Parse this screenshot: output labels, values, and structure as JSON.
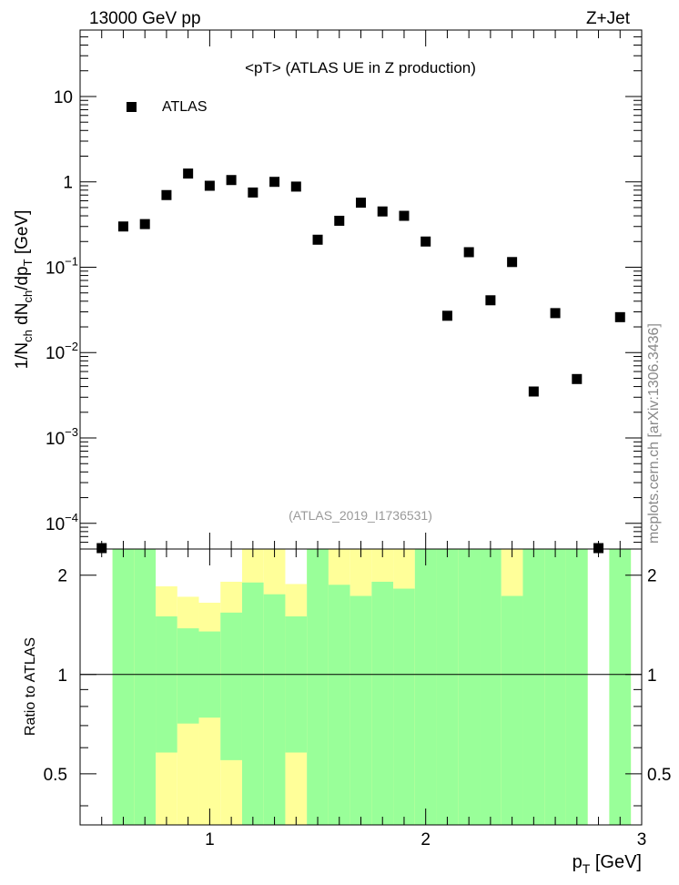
{
  "header": {
    "energy_label": "13000 GeV pp",
    "process_label": "Z+Jet",
    "side_label": "mcplots.cern.ch [arXiv:1306.3436]"
  },
  "chart_data": [
    {
      "type": "scatter",
      "title": "<pT> (ATLAS UE in Z production)",
      "analysis_label": "(ATLAS_2019_I1736531)",
      "ylabel": "1/N_ch dN_ch/dp_T [GeV]",
      "ylabel_parts": {
        "main": "1/N",
        "sub1": "ch",
        "mid": " dN",
        "sub2": "ch",
        "mid2": "/dp",
        "sub3": "T",
        "unit": " [GeV]"
      },
      "log_y": true,
      "xlim": [
        0.4,
        3.0
      ],
      "ylim": [
        5e-05,
        60
      ],
      "y_tick_labels": [
        {
          "value": 10,
          "label": "10"
        },
        {
          "value": 1,
          "label": "1"
        },
        {
          "value": 0.1,
          "base": "10",
          "exp": "−1"
        },
        {
          "value": 0.01,
          "base": "10",
          "exp": "−2"
        },
        {
          "value": 0.001,
          "base": "10",
          "exp": "−3"
        },
        {
          "value": 0.0001,
          "base": "10",
          "exp": "−4"
        }
      ],
      "legend": {
        "placement": "top-left",
        "entries": [
          {
            "label": "ATLAS",
            "marker": "square",
            "color": "#000000"
          }
        ]
      },
      "series": [
        {
          "name": "ATLAS",
          "x": [
            0.5,
            0.6,
            0.7,
            0.8,
            0.9,
            1.0,
            1.1,
            1.2,
            1.3,
            1.4,
            1.5,
            1.6,
            1.7,
            1.8,
            1.9,
            2.0,
            2.1,
            2.2,
            2.3,
            2.4,
            2.5,
            2.6,
            2.7,
            2.8,
            2.9
          ],
          "y": [
            5e-05,
            0.3,
            0.32,
            0.7,
            1.25,
            0.9,
            1.05,
            0.75,
            1.0,
            0.88,
            0.21,
            0.35,
            0.57,
            0.45,
            0.4,
            0.2,
            0.027,
            0.15,
            0.041,
            0.115,
            0.0035,
            0.029,
            0.0049,
            5e-05,
            0.026
          ]
        }
      ]
    },
    {
      "type": "area",
      "ylabel": "Ratio to ATLAS",
      "xlabel": "p_T [GeV]",
      "xlabel_parts": {
        "main": "p",
        "sub": "T",
        "unit": " [GeV]"
      },
      "log_y": true,
      "xlim": [
        0.4,
        3.0
      ],
      "ylim": [
        0.35,
        2.4
      ],
      "x_tick_labels": [
        "1",
        "2",
        "3"
      ],
      "y_tick_labels": [
        "0.5",
        "1",
        "2"
      ],
      "reference_line": 1,
      "band_colors": {
        "inner": "#99ff99",
        "outer": "#ffff99"
      },
      "bins": [
        {
          "lo": 0.55,
          "hi": 0.65,
          "green": [
            0.0,
            10
          ],
          "yellow": [
            0.0,
            10
          ]
        },
        {
          "lo": 0.65,
          "hi": 0.75,
          "green": [
            0.0,
            10
          ],
          "yellow": [
            0.0,
            10
          ]
        },
        {
          "lo": 0.75,
          "hi": 0.85,
          "green": [
            0.58,
            1.5
          ],
          "yellow": [
            0.0,
            1.85
          ]
        },
        {
          "lo": 0.85,
          "hi": 0.95,
          "green": [
            0.71,
            1.38
          ],
          "yellow": [
            0.0,
            1.72
          ]
        },
        {
          "lo": 0.95,
          "hi": 1.05,
          "green": [
            0.74,
            1.35
          ],
          "yellow": [
            0.0,
            1.65
          ]
        },
        {
          "lo": 1.05,
          "hi": 1.15,
          "green": [
            0.55,
            1.54
          ],
          "yellow": [
            0.0,
            1.91
          ]
        },
        {
          "lo": 1.15,
          "hi": 1.25,
          "green": [
            0.0,
            1.9
          ],
          "yellow": [
            0.0,
            10
          ]
        },
        {
          "lo": 1.25,
          "hi": 1.35,
          "green": [
            0.0,
            1.75
          ],
          "yellow": [
            0.0,
            10
          ]
        },
        {
          "lo": 1.35,
          "hi": 1.45,
          "green": [
            0.58,
            1.5
          ],
          "yellow": [
            0.0,
            1.88
          ]
        },
        {
          "lo": 1.45,
          "hi": 1.55,
          "green": [
            0.0,
            10
          ],
          "yellow": [
            0.0,
            10
          ]
        },
        {
          "lo": 1.55,
          "hi": 1.65,
          "green": [
            0.0,
            1.87
          ],
          "yellow": [
            0.0,
            10
          ]
        },
        {
          "lo": 1.65,
          "hi": 1.75,
          "green": [
            0.0,
            1.73
          ],
          "yellow": [
            0.0,
            10
          ]
        },
        {
          "lo": 1.75,
          "hi": 1.85,
          "green": [
            0.0,
            1.91
          ],
          "yellow": [
            0.0,
            10
          ]
        },
        {
          "lo": 1.85,
          "hi": 1.95,
          "green": [
            0.0,
            1.82
          ],
          "yellow": [
            0.0,
            10
          ]
        },
        {
          "lo": 1.95,
          "hi": 2.05,
          "green": [
            0.0,
            10
          ],
          "yellow": [
            0.0,
            10
          ]
        },
        {
          "lo": 2.05,
          "hi": 2.15,
          "green": [
            0.0,
            10
          ],
          "yellow": [
            0.0,
            10
          ]
        },
        {
          "lo": 2.15,
          "hi": 2.25,
          "green": [
            0.0,
            10
          ],
          "yellow": [
            0.0,
            10
          ]
        },
        {
          "lo": 2.25,
          "hi": 2.35,
          "green": [
            0.0,
            10
          ],
          "yellow": [
            0.0,
            10
          ]
        },
        {
          "lo": 2.35,
          "hi": 2.45,
          "green": [
            0.0,
            1.73
          ],
          "yellow": [
            0.0,
            10
          ]
        },
        {
          "lo": 2.45,
          "hi": 2.55,
          "green": [
            0.0,
            10
          ],
          "yellow": [
            0.0,
            10
          ]
        },
        {
          "lo": 2.55,
          "hi": 2.65,
          "green": [
            0.0,
            10
          ],
          "yellow": [
            0.0,
            10
          ]
        },
        {
          "lo": 2.65,
          "hi": 2.75,
          "green": [
            0.0,
            10
          ],
          "yellow": [
            0.0,
            10
          ]
        },
        {
          "lo": 2.85,
          "hi": 2.95,
          "green": [
            0.0,
            10
          ],
          "yellow": [
            0.0,
            10
          ]
        }
      ]
    }
  ]
}
